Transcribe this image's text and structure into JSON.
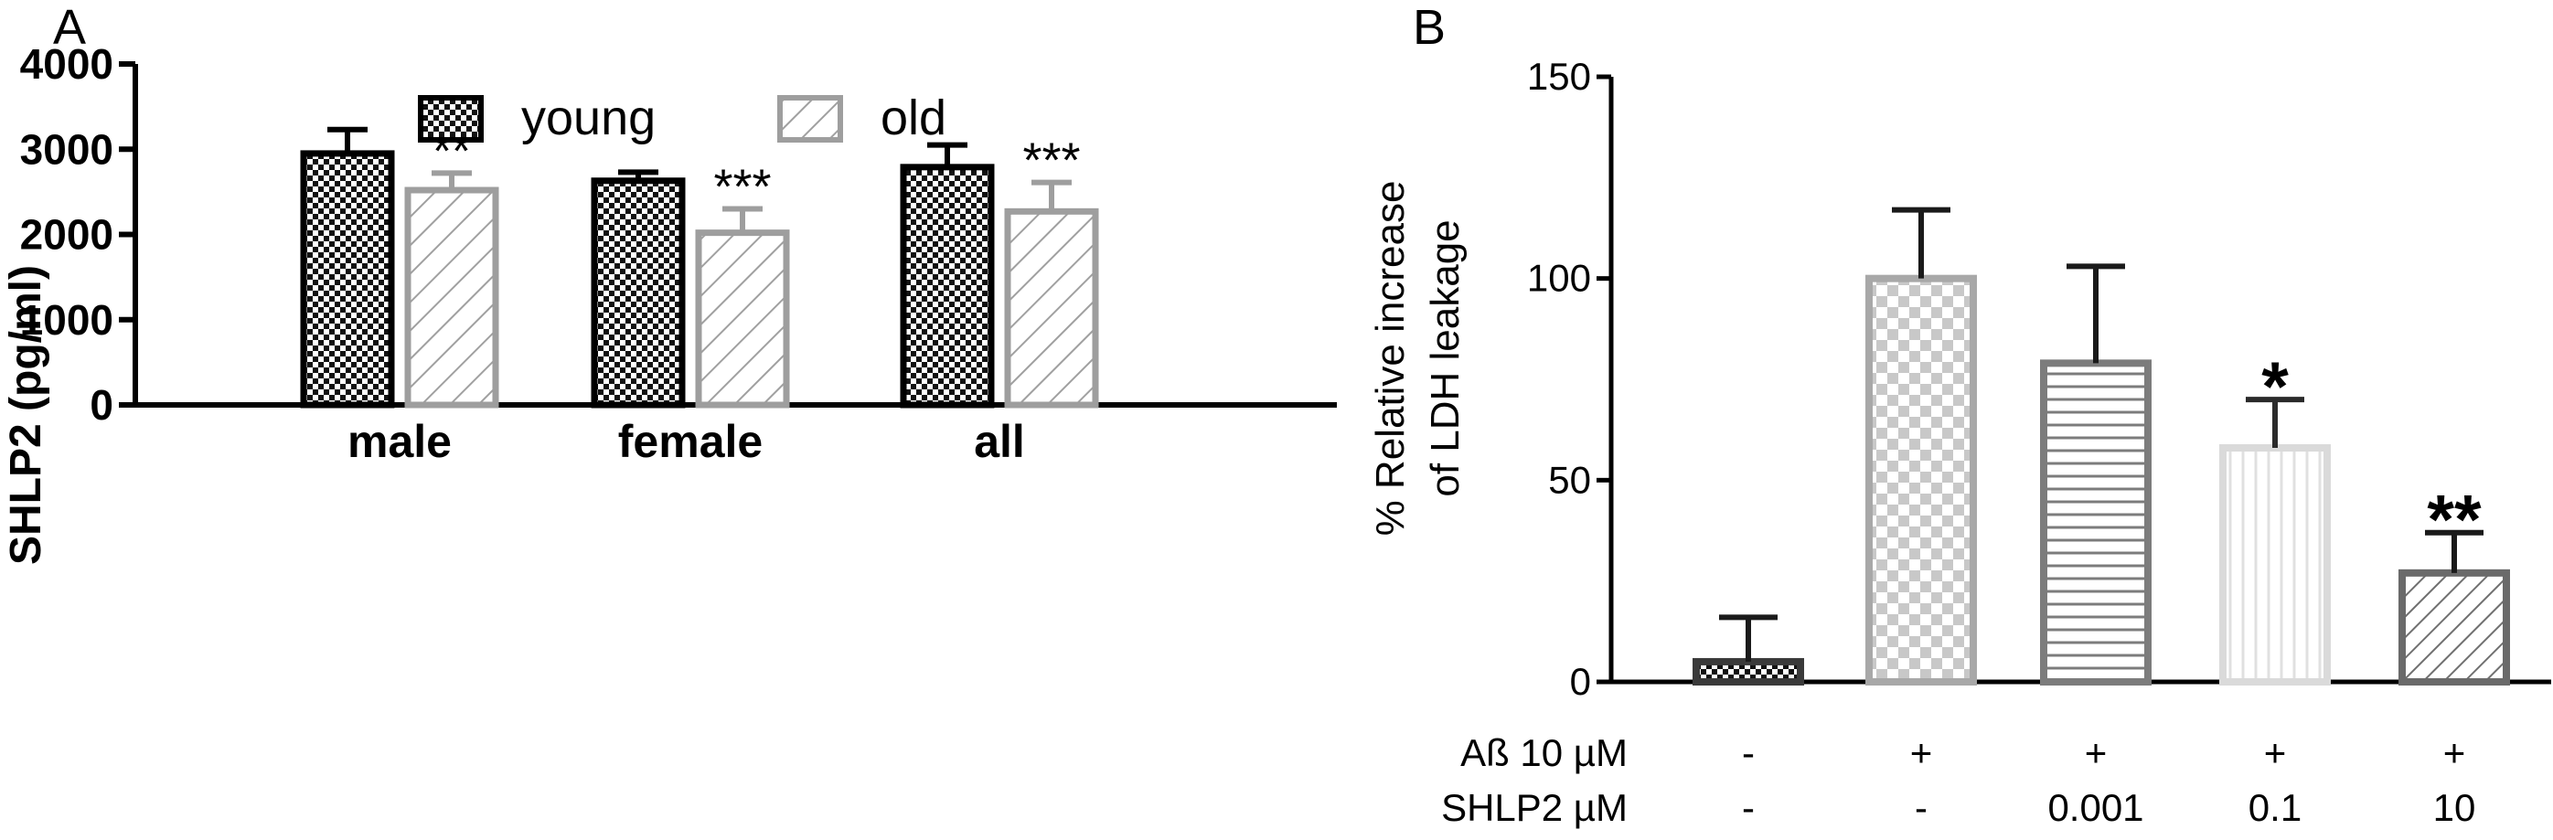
{
  "chart_data": [
    {
      "panel_label": "A",
      "type": "bar",
      "ylabel": "SHLP2 (pg/ml)",
      "ylim": [
        0,
        4000
      ],
      "yticks": [
        0,
        1000,
        2000,
        3000,
        4000
      ],
      "ytick_labels": [
        "0",
        "1000",
        "2000",
        "3000",
        "4000"
      ],
      "categories": [
        "male",
        "female",
        "all"
      ],
      "legend_position": "top-center",
      "series": [
        {
          "name": "young",
          "values": [
            2950,
            2630,
            2790
          ],
          "error": [
            280,
            100,
            260
          ],
          "fill": "dense-checker",
          "edge_color": "#000000",
          "significance": [
            "",
            "",
            ""
          ]
        },
        {
          "name": "old",
          "values": [
            2520,
            2020,
            2270
          ],
          "error": [
            200,
            280,
            340
          ],
          "fill": "diagonal-hatch",
          "edge_color": "#9e9e9e",
          "significance": [
            "**",
            "***",
            "***"
          ]
        }
      ],
      "grid": false
    },
    {
      "panel_label": "B",
      "type": "bar",
      "ylabel_lines": [
        "% Relative increase",
        "of LDH leakage"
      ],
      "ylim": [
        0,
        150
      ],
      "yticks": [
        0,
        50,
        100,
        150
      ],
      "ytick_labels": [
        "0",
        "50",
        "100",
        "150"
      ],
      "row_labels": [
        "Aß 10 µM",
        "SHLP2 µM"
      ],
      "categories": [
        {
          "abeta": "-",
          "shlp2": "-"
        },
        {
          "abeta": "+",
          "shlp2": "-"
        },
        {
          "abeta": "+",
          "shlp2": "0.001"
        },
        {
          "abeta": "+",
          "shlp2": "0.1"
        },
        {
          "abeta": "+",
          "shlp2": "10"
        }
      ],
      "values": [
        5,
        100,
        79,
        58,
        27
      ],
      "error": [
        11,
        17,
        24,
        12,
        10
      ],
      "fills": [
        "dense-checker",
        "checker",
        "horizontal-lines",
        "vertical-lines",
        "diagonal-hatch"
      ],
      "edge_colors": [
        "#3a3a3a",
        "#a8a8a8",
        "#7c7c7c",
        "#dadada",
        "#6a6a6a"
      ],
      "significance": [
        "",
        "",
        "",
        "*",
        "**"
      ],
      "grid": false
    }
  ]
}
